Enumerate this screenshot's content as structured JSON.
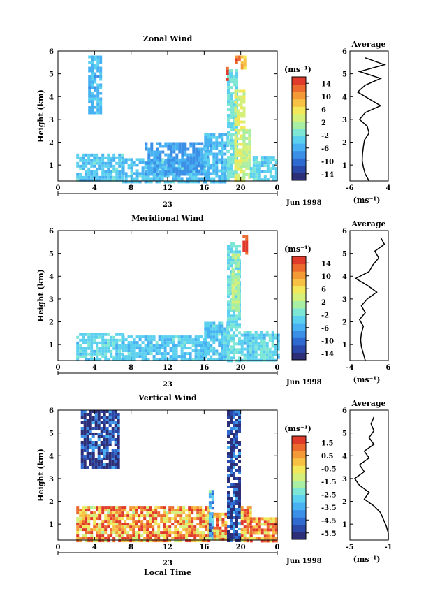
{
  "chart_data": [
    {
      "type": "heatmap",
      "title": "Zonal Wind",
      "ylabel": "Height (km)",
      "xticks": [
        "0",
        "4",
        "8",
        "12",
        "16",
        "20",
        "0"
      ],
      "yticks": [
        "1",
        "2",
        "3",
        "4",
        "5",
        "6"
      ],
      "xlim": [
        0,
        24
      ],
      "ylim": [
        0.3,
        6
      ],
      "date_label": "Jun 1998",
      "day_label": "23",
      "colorbar": {
        "unit": "(ms⁻¹)",
        "ticks": [
          "14",
          "10",
          "6",
          "2",
          "-2",
          "-6",
          "-10",
          "-14"
        ],
        "range": [
          -16,
          16
        ]
      },
      "segments": [
        {
          "x0": 3.3,
          "x1": 4.8,
          "y0": 3.3,
          "y1": 5.8,
          "v": -5
        },
        {
          "x0": 2.0,
          "x1": 7.0,
          "y0": 0.3,
          "y1": 1.5,
          "v": -4
        },
        {
          "x0": 7.0,
          "x1": 16.0,
          "y0": 0.3,
          "y1": 1.3,
          "v": -4
        },
        {
          "x0": 9.5,
          "x1": 16.5,
          "y0": 0.6,
          "y1": 2.0,
          "v": -7
        },
        {
          "x0": 16.0,
          "x1": 18.5,
          "y0": 0.3,
          "y1": 2.4,
          "v": -5
        },
        {
          "x0": 18.5,
          "x1": 19.5,
          "y0": 0.3,
          "y1": 5.2,
          "v": -2
        },
        {
          "x0": 19.3,
          "x1": 20.3,
          "y0": 0.3,
          "y1": 4.3,
          "v": 4
        },
        {
          "x0": 20.2,
          "x1": 21.0,
          "y0": 0.5,
          "y1": 2.6,
          "v": 2
        },
        {
          "x0": 21.0,
          "x1": 24.0,
          "y0": 0.3,
          "y1": 1.4,
          "v": -3
        },
        {
          "x0": 19.4,
          "x1": 20.0,
          "y0": 5.5,
          "y1": 5.8,
          "v": 12
        },
        {
          "x0": 20.0,
          "x1": 20.4,
          "y0": 5.3,
          "y1": 5.8,
          "v": 8
        },
        {
          "x0": 18.4,
          "x1": 18.7,
          "y0": 4.8,
          "y1": 5.3,
          "v": 14
        }
      ],
      "profile": {
        "title": "Average",
        "xlabel": "(ms⁻¹)",
        "xticks": [
          "-6",
          "4"
        ],
        "xlim": [
          -6,
          4
        ],
        "heights": [
          0.3,
          0.6,
          0.9,
          1.2,
          1.5,
          1.8,
          2.1,
          2.4,
          2.7,
          3.0,
          3.3,
          3.6,
          3.9,
          4.2,
          4.5,
          4.8,
          5.1,
          5.4,
          5.7
        ],
        "values": [
          -1.0,
          -2.0,
          -2.5,
          -2.8,
          -2.7,
          -2.5,
          -2.2,
          -1.0,
          -1.5,
          -3.5,
          -2.0,
          2.0,
          -1.0,
          -4.0,
          -2.0,
          2.0,
          -3.5,
          3.0,
          -2.0
        ]
      }
    },
    {
      "type": "heatmap",
      "title": "Meridional Wind",
      "ylabel": "Height (km)",
      "xticks": [
        "0",
        "4",
        "8",
        "12",
        "16",
        "20",
        "0"
      ],
      "yticks": [
        "1",
        "2",
        "3",
        "4",
        "5",
        "6"
      ],
      "xlim": [
        0,
        24
      ],
      "ylim": [
        0.3,
        6
      ],
      "date_label": "Jun 1998",
      "day_label": "23",
      "colorbar": {
        "unit": "(ms⁻¹)",
        "ticks": [
          "14",
          "10",
          "6",
          "2",
          "-2",
          "-6",
          "-10",
          "-14"
        ],
        "range": [
          -16,
          16
        ]
      },
      "segments": [
        {
          "x0": 2.0,
          "x1": 7.0,
          "y0": 0.3,
          "y1": 1.5,
          "v": -3
        },
        {
          "x0": 7.0,
          "x1": 16.0,
          "y0": 0.3,
          "y1": 1.4,
          "v": -4
        },
        {
          "x0": 16.0,
          "x1": 18.5,
          "y0": 0.3,
          "y1": 2.0,
          "v": -4
        },
        {
          "x0": 18.5,
          "x1": 20.0,
          "y0": 0.3,
          "y1": 5.5,
          "v": -2
        },
        {
          "x0": 19.0,
          "x1": 19.8,
          "y0": 2.5,
          "y1": 5.0,
          "v": 2
        },
        {
          "x0": 20.0,
          "x1": 24.0,
          "y0": 0.3,
          "y1": 1.6,
          "v": -3
        },
        {
          "x0": 20.2,
          "x1": 20.8,
          "y0": 5.0,
          "y1": 5.8,
          "v": 14
        }
      ],
      "profile": {
        "title": "Average",
        "xlabel": "(ms⁻¹)",
        "xticks": [
          "-4",
          "6"
        ],
        "xlim": [
          -4,
          6
        ],
        "heights": [
          0.3,
          0.6,
          0.9,
          1.2,
          1.5,
          1.8,
          2.1,
          2.4,
          2.7,
          3.0,
          3.3,
          3.6,
          3.9,
          4.2,
          4.5,
          4.8,
          5.1,
          5.4,
          5.7
        ],
        "values": [
          0.0,
          -0.5,
          -1.0,
          -1.2,
          -1.0,
          -0.5,
          -1.5,
          0.0,
          -1.0,
          0.5,
          3.0,
          0.5,
          -2.5,
          1.0,
          2.0,
          3.5,
          2.5,
          5.0,
          4.0
        ]
      }
    },
    {
      "type": "heatmap",
      "title": "Vertical Wind",
      "ylabel": "Height (km)",
      "xlabel": "Local Time",
      "xticks": [
        "0",
        "4",
        "8",
        "12",
        "16",
        "20",
        "0"
      ],
      "yticks": [
        "1",
        "2",
        "3",
        "4",
        "5",
        "6"
      ],
      "xlim": [
        0,
        24
      ],
      "ylim": [
        0.3,
        6
      ],
      "date_label": "Jun 1998",
      "day_label": "23",
      "colorbar": {
        "unit": "(ms⁻¹)",
        "ticks": [
          "1.5",
          "0.5",
          "-0.5",
          "-1.5",
          "-2.5",
          "-3.5",
          "-4.5",
          "-5.5"
        ],
        "range": [
          -6,
          2
        ]
      },
      "segments": [
        {
          "x0": 2.5,
          "x1": 6.5,
          "y0": 3.5,
          "y1": 6.0,
          "v": -5.5
        },
        {
          "x0": 2.0,
          "x1": 16.5,
          "y0": 0.3,
          "y1": 1.8,
          "v": 0.5
        },
        {
          "x0": 16.5,
          "x1": 17.0,
          "y0": 0.3,
          "y1": 2.5,
          "v": -3.5
        },
        {
          "x0": 17.0,
          "x1": 18.5,
          "y0": 0.3,
          "y1": 1.5,
          "v": 0.5
        },
        {
          "x0": 18.5,
          "x1": 20.0,
          "y0": 0.3,
          "y1": 6.0,
          "v": -5.5
        },
        {
          "x0": 20.0,
          "x1": 21.0,
          "y0": 0.3,
          "y1": 1.8,
          "v": 0.5
        },
        {
          "x0": 21.0,
          "x1": 24.0,
          "y0": 0.3,
          "y1": 1.3,
          "v": 0.8
        }
      ],
      "profile": {
        "title": "Average",
        "xlabel": "(ms⁻¹)",
        "xticks": [
          "-5",
          "-1"
        ],
        "xlim": [
          -5,
          -1
        ],
        "heights": [
          0.3,
          0.6,
          0.9,
          1.2,
          1.5,
          1.8,
          2.1,
          2.4,
          2.7,
          3.0,
          3.3,
          3.6,
          3.9,
          4.2,
          4.5,
          4.8,
          5.1,
          5.4,
          5.7
        ],
        "values": [
          -1.0,
          -1.0,
          -1.2,
          -1.5,
          -1.8,
          -2.5,
          -3.5,
          -3.0,
          -4.0,
          -4.5,
          -3.5,
          -4.0,
          -3.0,
          -3.5,
          -2.5,
          -3.0,
          -2.5,
          -2.8,
          -2.5
        ]
      }
    }
  ]
}
